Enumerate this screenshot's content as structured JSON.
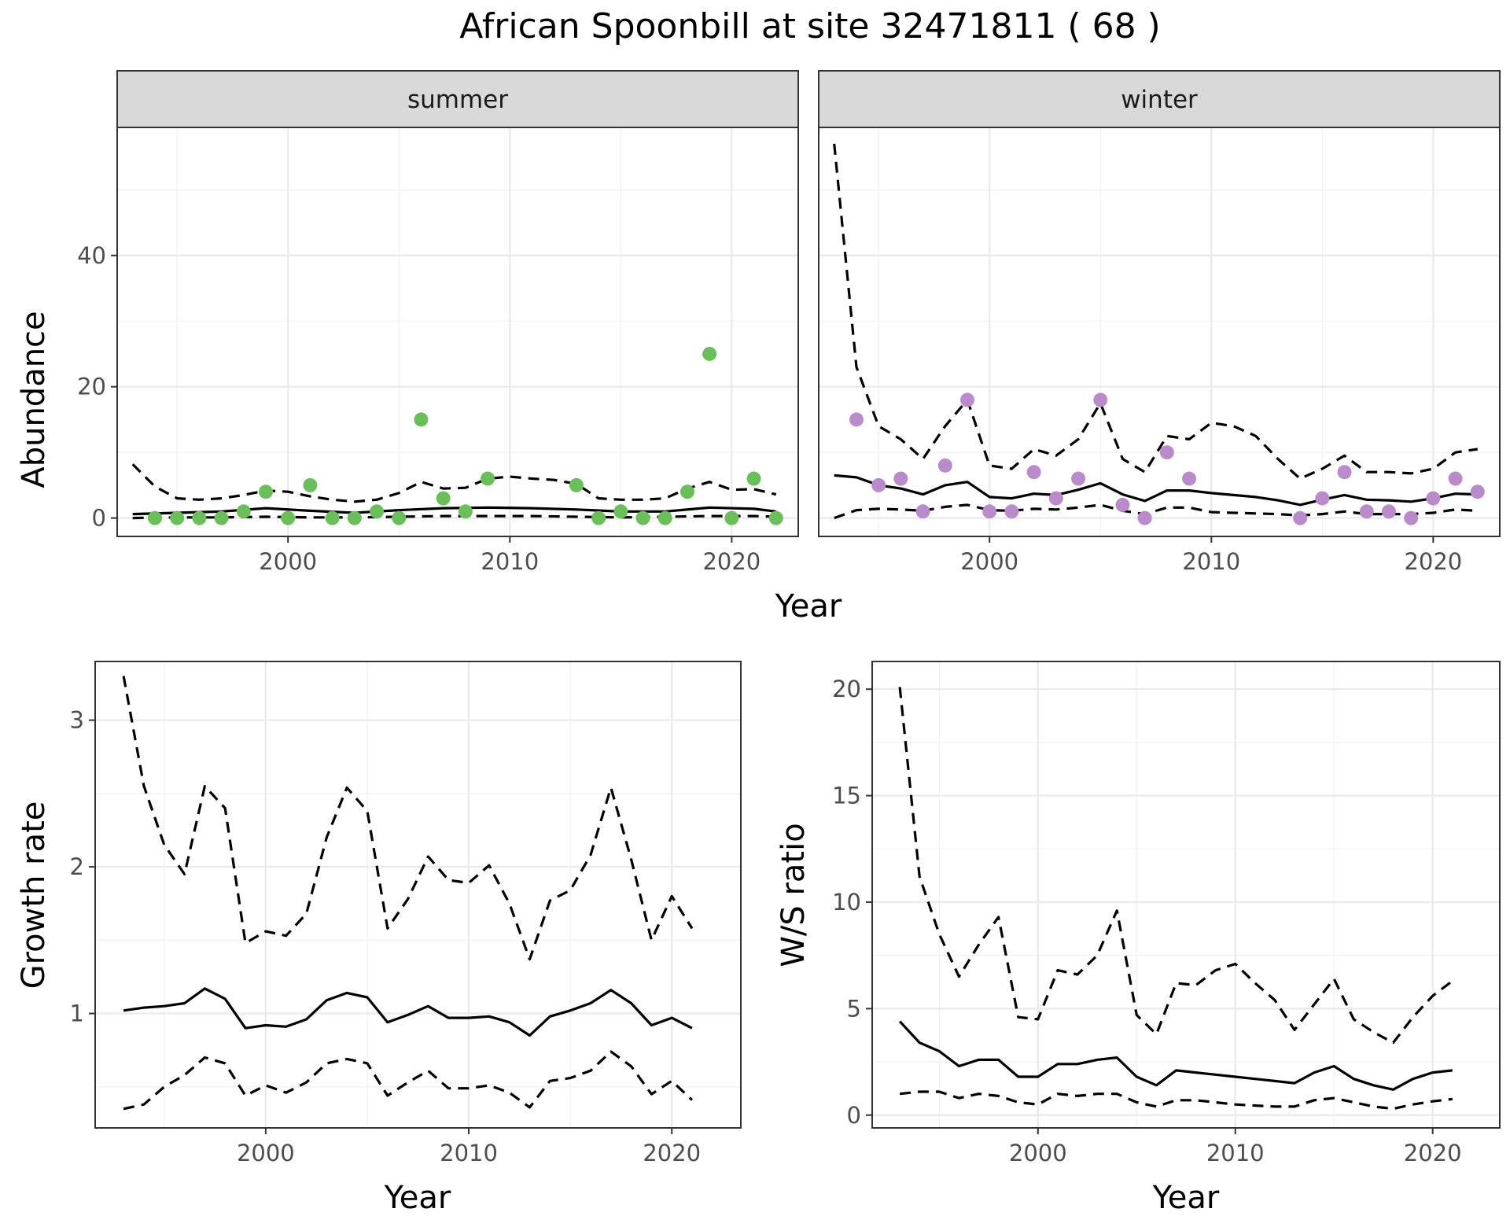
{
  "figure": {
    "title": "African Spoonbill at site 32471811 ( 68 )"
  },
  "colors": {
    "summer_points": "#6abf5b",
    "winter_points": "#b98bcb",
    "lines": "#000000"
  },
  "chart_data": [
    {
      "type": "line",
      "id": "abundance-summer",
      "facet": "summer",
      "xlabel": "Year",
      "ylabel": "Abundance",
      "xlim": [
        1992.3,
        2023.0
      ],
      "ylim": [
        -2.8,
        59.5
      ],
      "xticks": [
        2000,
        2010,
        2020
      ],
      "yticks": [
        0,
        20,
        40
      ],
      "grid": true,
      "points": {
        "x": [
          1994,
          1995,
          1996,
          1997,
          1998,
          1999,
          2000,
          2001,
          2002,
          2003,
          2004,
          2005,
          2006,
          2007,
          2008,
          2009,
          2013,
          2014,
          2015,
          2016,
          2017,
          2018,
          2019,
          2020,
          2021,
          2022
        ],
        "y": [
          0,
          0,
          0,
          0,
          1,
          4,
          0,
          5,
          0,
          0,
          1,
          0,
          15,
          3,
          1,
          6,
          5,
          0,
          1,
          0,
          0,
          4,
          25,
          0,
          6,
          0
        ]
      },
      "series": [
        {
          "style": "solid",
          "x": [
            1993,
            1995,
            1997,
            1999,
            2001,
            2003,
            2005,
            2007,
            2009,
            2011,
            2013,
            2015,
            2017,
            2019,
            2021,
            2022
          ],
          "y": [
            0.6,
            0.8,
            1.0,
            1.5,
            1.1,
            0.8,
            1.2,
            1.5,
            1.6,
            1.5,
            1.3,
            1.0,
            1.0,
            1.6,
            1.4,
            1.0
          ]
        },
        {
          "style": "dashed-upper",
          "x": [
            1993,
            1994,
            1995,
            1996,
            1997,
            1998,
            1999,
            2000,
            2001,
            2002,
            2003,
            2004,
            2005,
            2006,
            2007,
            2008,
            2009,
            2010,
            2011,
            2012,
            2013,
            2014,
            2015,
            2016,
            2017,
            2018,
            2019,
            2020,
            2021,
            2022
          ],
          "y": [
            8.2,
            4.8,
            3.0,
            2.8,
            3.0,
            3.5,
            4.2,
            4.0,
            3.3,
            2.8,
            2.5,
            2.8,
            3.8,
            5.5,
            4.5,
            4.6,
            6.0,
            6.3,
            6.0,
            5.8,
            5.2,
            3.0,
            2.8,
            2.8,
            3.0,
            4.5,
            5.5,
            4.3,
            4.4,
            3.6
          ]
        },
        {
          "style": "dashed-lower",
          "x": [
            1993,
            1995,
            1997,
            1999,
            2001,
            2003,
            2005,
            2007,
            2009,
            2011,
            2013,
            2015,
            2017,
            2019,
            2021,
            2022
          ],
          "y": [
            0.0,
            0.1,
            0.1,
            0.2,
            0.1,
            0.1,
            0.2,
            0.3,
            0.3,
            0.3,
            0.2,
            0.1,
            0.2,
            0.3,
            0.3,
            0.2
          ]
        }
      ]
    },
    {
      "type": "line",
      "id": "abundance-winter",
      "facet": "winter",
      "xlabel": "Year",
      "ylabel": "Abundance",
      "xlim": [
        1992.3,
        2023.0
      ],
      "ylim": [
        -2.8,
        59.5
      ],
      "xticks": [
        2000,
        2010,
        2020
      ],
      "yticks": [
        0,
        20,
        40
      ],
      "grid": true,
      "points": {
        "x": [
          1994,
          1995,
          1996,
          1997,
          1998,
          1999,
          2000,
          2001,
          2002,
          2003,
          2004,
          2005,
          2006,
          2007,
          2008,
          2009,
          2014,
          2015,
          2016,
          2017,
          2018,
          2019,
          2020,
          2021,
          2022
        ],
        "y": [
          15,
          5,
          6,
          1,
          8,
          18,
          1,
          1,
          7,
          3,
          6,
          18,
          2,
          0,
          10,
          6,
          0,
          3,
          7,
          1,
          1,
          0,
          3,
          6,
          4
        ]
      },
      "series": [
        {
          "style": "solid",
          "x": [
            1993,
            1994,
            1995,
            1996,
            1997,
            1998,
            1999,
            2000,
            2001,
            2002,
            2003,
            2004,
            2005,
            2006,
            2007,
            2008,
            2009,
            2010,
            2011,
            2012,
            2013,
            2014,
            2015,
            2016,
            2017,
            2018,
            2019,
            2020,
            2021,
            2022
          ],
          "y": [
            6.5,
            6.2,
            5.0,
            4.5,
            3.6,
            5.0,
            5.5,
            3.2,
            3.0,
            3.7,
            3.5,
            4.3,
            5.3,
            3.6,
            2.6,
            4.2,
            4.2,
            3.8,
            3.5,
            3.2,
            2.7,
            2.0,
            2.8,
            3.5,
            2.8,
            2.7,
            2.5,
            3.0,
            3.7,
            3.6
          ]
        },
        {
          "style": "dashed-upper",
          "x": [
            1993,
            1994,
            1995,
            1996,
            1997,
            1998,
            1999,
            2000,
            2001,
            2002,
            2003,
            2004,
            2005,
            2006,
            2007,
            2008,
            2009,
            2010,
            2011,
            2012,
            2013,
            2014,
            2015,
            2016,
            2017,
            2018,
            2019,
            2020,
            2021,
            2022
          ],
          "y": [
            57,
            23,
            14,
            12,
            9,
            14,
            18,
            8,
            7.5,
            10.5,
            9.5,
            12,
            17.5,
            9,
            7,
            12.5,
            12,
            14.5,
            14,
            12.5,
            9,
            6,
            7.5,
            9.5,
            7,
            7,
            6.8,
            7.5,
            10,
            10.5
          ]
        },
        {
          "style": "dashed-lower",
          "x": [
            1993,
            1994,
            1995,
            1996,
            1997,
            1998,
            1999,
            2000,
            2001,
            2002,
            2003,
            2004,
            2005,
            2006,
            2007,
            2008,
            2009,
            2010,
            2011,
            2012,
            2013,
            2014,
            2015,
            2016,
            2017,
            2018,
            2019,
            2020,
            2021,
            2022
          ],
          "y": [
            0.0,
            1.2,
            1.4,
            1.3,
            1.1,
            1.7,
            2.0,
            1.2,
            1.1,
            1.4,
            1.3,
            1.6,
            2.0,
            1.1,
            0.6,
            1.6,
            1.6,
            0.9,
            0.8,
            0.7,
            0.6,
            0.4,
            0.6,
            1.0,
            0.6,
            0.6,
            0.6,
            0.8,
            1.3,
            1.1
          ]
        }
      ]
    },
    {
      "type": "line",
      "id": "growth-rate",
      "xlabel": "Year",
      "ylabel": "Growth rate",
      "xlim": [
        1991.6,
        2023.4
      ],
      "ylim": [
        0.22,
        3.4
      ],
      "xticks": [
        2000,
        2010,
        2020
      ],
      "yticks": [
        1,
        2,
        3
      ],
      "grid": true,
      "series": [
        {
          "style": "solid",
          "x": [
            1993,
            1994,
            1995,
            1996,
            1997,
            1998,
            1999,
            2000,
            2001,
            2002,
            2003,
            2004,
            2005,
            2006,
            2007,
            2008,
            2009,
            2010,
            2011,
            2012,
            2013,
            2014,
            2015,
            2016,
            2017,
            2018,
            2019,
            2020,
            2021
          ],
          "y": [
            1.02,
            1.04,
            1.05,
            1.07,
            1.17,
            1.1,
            0.9,
            0.92,
            0.91,
            0.96,
            1.09,
            1.14,
            1.11,
            0.94,
            0.99,
            1.05,
            0.97,
            0.97,
            0.98,
            0.94,
            0.85,
            0.98,
            1.02,
            1.07,
            1.16,
            1.07,
            0.92,
            0.97,
            0.9
          ]
        },
        {
          "style": "dashed-upper",
          "x": [
            1993,
            1994,
            1995,
            1996,
            1997,
            1998,
            1999,
            2000,
            2001,
            2002,
            2003,
            2004,
            2005,
            2006,
            2007,
            2008,
            2009,
            2010,
            2011,
            2012,
            2013,
            2014,
            2015,
            2016,
            2017,
            2018,
            2019,
            2020,
            2021
          ],
          "y": [
            3.3,
            2.55,
            2.15,
            1.95,
            2.55,
            2.4,
            1.48,
            1.56,
            1.53,
            1.68,
            2.2,
            2.54,
            2.38,
            1.58,
            1.78,
            2.07,
            1.91,
            1.89,
            2.01,
            1.75,
            1.37,
            1.77,
            1.84,
            2.08,
            2.54,
            2.05,
            1.5,
            1.8,
            1.58
          ]
        },
        {
          "style": "dashed-lower",
          "x": [
            1993,
            1994,
            1995,
            1996,
            1997,
            1998,
            1999,
            2000,
            2001,
            2002,
            2003,
            2004,
            2005,
            2006,
            2007,
            2008,
            2009,
            2010,
            2011,
            2012,
            2013,
            2014,
            2015,
            2016,
            2017,
            2018,
            2019,
            2020,
            2021
          ],
          "y": [
            0.35,
            0.38,
            0.5,
            0.58,
            0.7,
            0.66,
            0.44,
            0.51,
            0.46,
            0.53,
            0.66,
            0.69,
            0.66,
            0.44,
            0.53,
            0.61,
            0.49,
            0.49,
            0.51,
            0.46,
            0.36,
            0.54,
            0.56,
            0.61,
            0.74,
            0.64,
            0.45,
            0.54,
            0.41
          ]
        }
      ]
    },
    {
      "type": "line",
      "id": "ws-ratio",
      "xlabel": "Year",
      "ylabel": "W/S ratio",
      "xlim": [
        1991.6,
        2023.4
      ],
      "ylim": [
        -0.6,
        21.3
      ],
      "xticks": [
        2000,
        2010,
        2020
      ],
      "yticks": [
        0,
        5,
        10,
        15,
        20
      ],
      "grid": true,
      "series": [
        {
          "style": "solid",
          "x": [
            1993,
            1994,
            1995,
            1996,
            1997,
            1998,
            1999,
            2000,
            2001,
            2002,
            2003,
            2004,
            2005,
            2006,
            2007,
            2008,
            2009,
            2010,
            2011,
            2012,
            2013,
            2014,
            2015,
            2016,
            2017,
            2018,
            2019,
            2020,
            2021
          ],
          "y": [
            4.4,
            3.4,
            3.0,
            2.3,
            2.6,
            2.6,
            1.8,
            1.8,
            2.4,
            2.4,
            2.6,
            2.7,
            1.8,
            1.4,
            2.1,
            2.0,
            1.9,
            1.8,
            1.7,
            1.6,
            1.5,
            2.0,
            2.3,
            1.7,
            1.4,
            1.2,
            1.7,
            2.0,
            2.1
          ]
        },
        {
          "style": "dashed-upper",
          "x": [
            1993,
            1994,
            1995,
            1996,
            1997,
            1998,
            1999,
            2000,
            2001,
            2002,
            2003,
            2004,
            2005,
            2006,
            2007,
            2008,
            2009,
            2010,
            2011,
            2012,
            2013,
            2014,
            2015,
            2016,
            2017,
            2018,
            2019,
            2020,
            2021
          ],
          "y": [
            20.1,
            11.2,
            8.5,
            6.5,
            8.0,
            9.3,
            4.6,
            4.5,
            6.8,
            6.6,
            7.5,
            9.6,
            4.7,
            3.8,
            6.2,
            6.1,
            6.8,
            7.1,
            6.2,
            5.4,
            4.0,
            5.2,
            6.4,
            4.5,
            3.9,
            3.4,
            4.6,
            5.6,
            6.3
          ]
        },
        {
          "style": "dashed-lower",
          "x": [
            1993,
            1994,
            1995,
            1996,
            1997,
            1998,
            1999,
            2000,
            2001,
            2002,
            2003,
            2004,
            2005,
            2006,
            2007,
            2008,
            2009,
            2010,
            2011,
            2012,
            2013,
            2014,
            2015,
            2016,
            2017,
            2018,
            2019,
            2020,
            2021
          ],
          "y": [
            1.0,
            1.1,
            1.1,
            0.8,
            1.0,
            0.9,
            0.6,
            0.5,
            1.0,
            0.9,
            1.0,
            1.0,
            0.6,
            0.4,
            0.7,
            0.7,
            0.6,
            0.5,
            0.45,
            0.4,
            0.4,
            0.7,
            0.8,
            0.6,
            0.4,
            0.3,
            0.5,
            0.65,
            0.75
          ]
        }
      ]
    }
  ]
}
